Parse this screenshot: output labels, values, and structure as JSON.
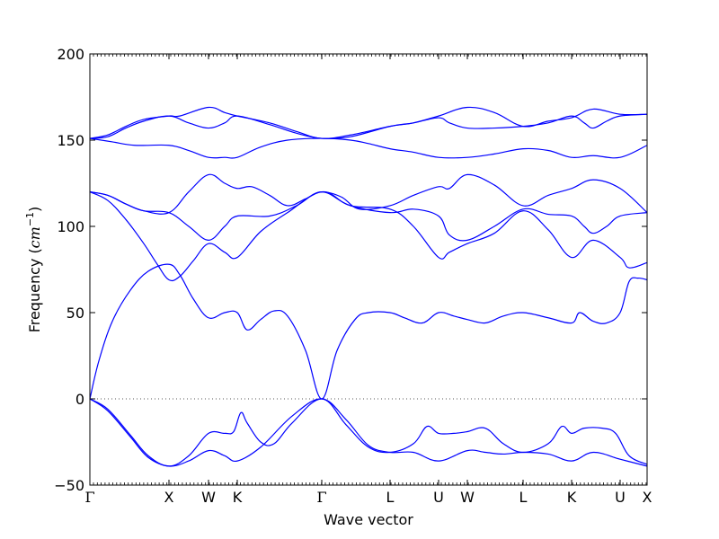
{
  "chart_data": {
    "type": "line",
    "xlabel": "Wave vector",
    "ylabel_prefix": "Frequency (",
    "ylabel_unit": "cm",
    "ylabel_exp": "−1",
    "ylabel_suffix": ")",
    "ylim": [
      -50,
      200
    ],
    "yticks": [
      {
        "value": -50,
        "label": "−50"
      },
      {
        "value": 0,
        "label": "0"
      },
      {
        "value": 50,
        "label": "50"
      },
      {
        "value": 100,
        "label": "100"
      },
      {
        "value": 150,
        "label": "150"
      },
      {
        "value": 200,
        "label": "200"
      }
    ],
    "xlim": [
      0,
      620
    ],
    "high_symmetry_points": [
      {
        "x": 0,
        "label": "Γ"
      },
      {
        "x": 88,
        "label": "X"
      },
      {
        "x": 132,
        "label": "W"
      },
      {
        "x": 164,
        "label": "K"
      },
      {
        "x": 258,
        "label": "Γ"
      },
      {
        "x": 334,
        "label": "L"
      },
      {
        "x": 388,
        "label": "U"
      },
      {
        "x": 420,
        "label": "W"
      },
      {
        "x": 482,
        "label": "L"
      },
      {
        "x": 536,
        "label": "K"
      },
      {
        "x": 590,
        "label": "U"
      },
      {
        "x": 620,
        "label": "X"
      }
    ],
    "zero_line": true,
    "line_color": "#0000ff",
    "series": [
      {
        "points": [
          [
            0,
            151
          ],
          [
            20,
            153
          ],
          [
            40,
            158
          ],
          [
            60,
            162
          ],
          [
            88,
            164
          ],
          [
            100,
            164
          ],
          [
            132,
            169
          ],
          [
            150,
            166
          ],
          [
            164,
            164
          ],
          [
            200,
            160
          ],
          [
            230,
            155
          ],
          [
            258,
            151
          ],
          [
            290,
            153
          ],
          [
            334,
            158
          ],
          [
            360,
            160
          ],
          [
            388,
            164
          ],
          [
            420,
            169
          ],
          [
            450,
            166
          ],
          [
            482,
            158
          ],
          [
            510,
            161
          ],
          [
            536,
            163
          ],
          [
            560,
            168
          ],
          [
            590,
            165
          ],
          [
            620,
            165
          ]
        ]
      },
      {
        "points": [
          [
            0,
            151
          ],
          [
            20,
            152
          ],
          [
            40,
            157
          ],
          [
            60,
            161
          ],
          [
            88,
            164
          ],
          [
            110,
            160
          ],
          [
            132,
            157
          ],
          [
            150,
            160
          ],
          [
            164,
            164
          ],
          [
            200,
            159
          ],
          [
            230,
            154
          ],
          [
            258,
            151
          ],
          [
            290,
            152
          ],
          [
            334,
            158
          ],
          [
            360,
            160
          ],
          [
            388,
            163
          ],
          [
            400,
            160
          ],
          [
            420,
            157
          ],
          [
            450,
            157
          ],
          [
            482,
            158
          ],
          [
            510,
            160
          ],
          [
            536,
            164
          ],
          [
            550,
            160
          ],
          [
            560,
            157
          ],
          [
            575,
            161
          ],
          [
            590,
            164
          ],
          [
            620,
            165
          ]
        ]
      },
      {
        "points": [
          [
            0,
            151
          ],
          [
            25,
            149
          ],
          [
            50,
            147
          ],
          [
            88,
            147
          ],
          [
            110,
            144
          ],
          [
            132,
            140
          ],
          [
            150,
            140
          ],
          [
            164,
            140
          ],
          [
            190,
            146
          ],
          [
            220,
            150
          ],
          [
            258,
            151
          ],
          [
            290,
            150
          ],
          [
            310,
            148
          ],
          [
            334,
            145
          ],
          [
            360,
            143
          ],
          [
            388,
            140
          ],
          [
            420,
            140
          ],
          [
            450,
            142
          ],
          [
            482,
            145
          ],
          [
            510,
            144
          ],
          [
            536,
            140
          ],
          [
            560,
            141
          ],
          [
            590,
            140
          ],
          [
            620,
            147
          ]
        ]
      },
      {
        "points": [
          [
            0,
            120
          ],
          [
            20,
            118
          ],
          [
            40,
            113
          ],
          [
            60,
            109
          ],
          [
            88,
            108
          ],
          [
            110,
            120
          ],
          [
            132,
            130
          ],
          [
            150,
            125
          ],
          [
            164,
            122
          ],
          [
            180,
            123
          ],
          [
            200,
            118
          ],
          [
            220,
            112
          ],
          [
            240,
            116
          ],
          [
            258,
            120
          ],
          [
            280,
            117
          ],
          [
            300,
            110
          ],
          [
            334,
            112
          ],
          [
            360,
            118
          ],
          [
            388,
            123
          ],
          [
            400,
            122
          ],
          [
            420,
            130
          ],
          [
            450,
            124
          ],
          [
            482,
            112
          ],
          [
            510,
            118
          ],
          [
            536,
            122
          ],
          [
            560,
            127
          ],
          [
            590,
            122
          ],
          [
            620,
            108
          ]
        ]
      },
      {
        "points": [
          [
            0,
            120
          ],
          [
            20,
            118
          ],
          [
            40,
            113
          ],
          [
            60,
            109
          ],
          [
            88,
            108
          ],
          [
            110,
            100
          ],
          [
            132,
            92
          ],
          [
            150,
            100
          ],
          [
            164,
            106
          ],
          [
            200,
            106
          ],
          [
            230,
            112
          ],
          [
            258,
            120
          ],
          [
            290,
            112
          ],
          [
            334,
            108
          ],
          [
            360,
            110
          ],
          [
            388,
            106
          ],
          [
            400,
            95
          ],
          [
            420,
            92
          ],
          [
            450,
            100
          ],
          [
            482,
            110
          ],
          [
            510,
            107
          ],
          [
            536,
            106
          ],
          [
            550,
            100
          ],
          [
            560,
            96
          ],
          [
            575,
            100
          ],
          [
            590,
            106
          ],
          [
            620,
            108
          ]
        ]
      },
      {
        "points": [
          [
            0,
            120
          ],
          [
            20,
            115
          ],
          [
            40,
            104
          ],
          [
            60,
            90
          ],
          [
            75,
            78
          ],
          [
            88,
            69
          ],
          [
            100,
            71
          ],
          [
            115,
            80
          ],
          [
            132,
            90
          ],
          [
            150,
            85
          ],
          [
            164,
            82
          ],
          [
            190,
            97
          ],
          [
            220,
            108
          ],
          [
            258,
            120
          ],
          [
            290,
            112
          ],
          [
            334,
            110
          ],
          [
            360,
            100
          ],
          [
            388,
            82
          ],
          [
            400,
            85
          ],
          [
            420,
            90
          ],
          [
            450,
            96
          ],
          [
            482,
            109
          ],
          [
            510,
            98
          ],
          [
            536,
            82
          ],
          [
            560,
            92
          ],
          [
            590,
            82
          ],
          [
            600,
            76
          ],
          [
            620,
            79
          ]
        ]
      },
      {
        "points": [
          [
            0,
            0
          ],
          [
            10,
            22
          ],
          [
            25,
            45
          ],
          [
            45,
            63
          ],
          [
            65,
            74
          ],
          [
            88,
            78
          ],
          [
            100,
            72
          ],
          [
            115,
            58
          ],
          [
            132,
            47
          ],
          [
            150,
            50
          ],
          [
            164,
            50
          ],
          [
            175,
            40
          ],
          [
            190,
            46
          ],
          [
            205,
            51
          ],
          [
            220,
            48
          ],
          [
            240,
            28
          ],
          [
            258,
            0
          ],
          [
            275,
            28
          ],
          [
            295,
            46
          ],
          [
            310,
            50
          ],
          [
            334,
            50
          ],
          [
            350,
            47
          ],
          [
            370,
            44
          ],
          [
            388,
            50
          ],
          [
            405,
            48
          ],
          [
            420,
            46
          ],
          [
            440,
            44
          ],
          [
            460,
            48
          ],
          [
            482,
            50
          ],
          [
            510,
            47
          ],
          [
            536,
            44
          ],
          [
            545,
            50
          ],
          [
            560,
            45
          ],
          [
            575,
            44
          ],
          [
            590,
            50
          ],
          [
            600,
            68
          ],
          [
            610,
            70
          ],
          [
            620,
            69
          ]
        ]
      },
      {
        "points": [
          [
            0,
            0
          ],
          [
            20,
            -6
          ],
          [
            45,
            -21
          ],
          [
            65,
            -33
          ],
          [
            88,
            -39
          ],
          [
            110,
            -33
          ],
          [
            132,
            -20
          ],
          [
            150,
            -20
          ],
          [
            160,
            -19
          ],
          [
            168,
            -8
          ],
          [
            175,
            -14
          ],
          [
            190,
            -25
          ],
          [
            205,
            -26
          ],
          [
            225,
            -14
          ],
          [
            258,
            0
          ],
          [
            285,
            -15
          ],
          [
            310,
            -28
          ],
          [
            334,
            -31
          ],
          [
            360,
            -26
          ],
          [
            375,
            -16
          ],
          [
            388,
            -20
          ],
          [
            405,
            -20
          ],
          [
            420,
            -19
          ],
          [
            440,
            -17
          ],
          [
            460,
            -26
          ],
          [
            482,
            -31
          ],
          [
            510,
            -26
          ],
          [
            525,
            -16
          ],
          [
            536,
            -20
          ],
          [
            550,
            -17
          ],
          [
            570,
            -17
          ],
          [
            585,
            -20
          ],
          [
            600,
            -33
          ],
          [
            620,
            -38
          ]
        ]
      },
      {
        "points": [
          [
            0,
            0
          ],
          [
            20,
            -7
          ],
          [
            45,
            -22
          ],
          [
            65,
            -34
          ],
          [
            88,
            -39
          ],
          [
            110,
            -36
          ],
          [
            132,
            -30
          ],
          [
            150,
            -33
          ],
          [
            164,
            -36
          ],
          [
            190,
            -28
          ],
          [
            225,
            -10
          ],
          [
            258,
            0
          ],
          [
            285,
            -12
          ],
          [
            310,
            -27
          ],
          [
            334,
            -31
          ],
          [
            360,
            -31
          ],
          [
            388,
            -36
          ],
          [
            420,
            -30
          ],
          [
            440,
            -31
          ],
          [
            460,
            -32
          ],
          [
            482,
            -31
          ],
          [
            510,
            -32
          ],
          [
            536,
            -36
          ],
          [
            560,
            -31
          ],
          [
            590,
            -35
          ],
          [
            620,
            -39
          ]
        ]
      }
    ]
  }
}
